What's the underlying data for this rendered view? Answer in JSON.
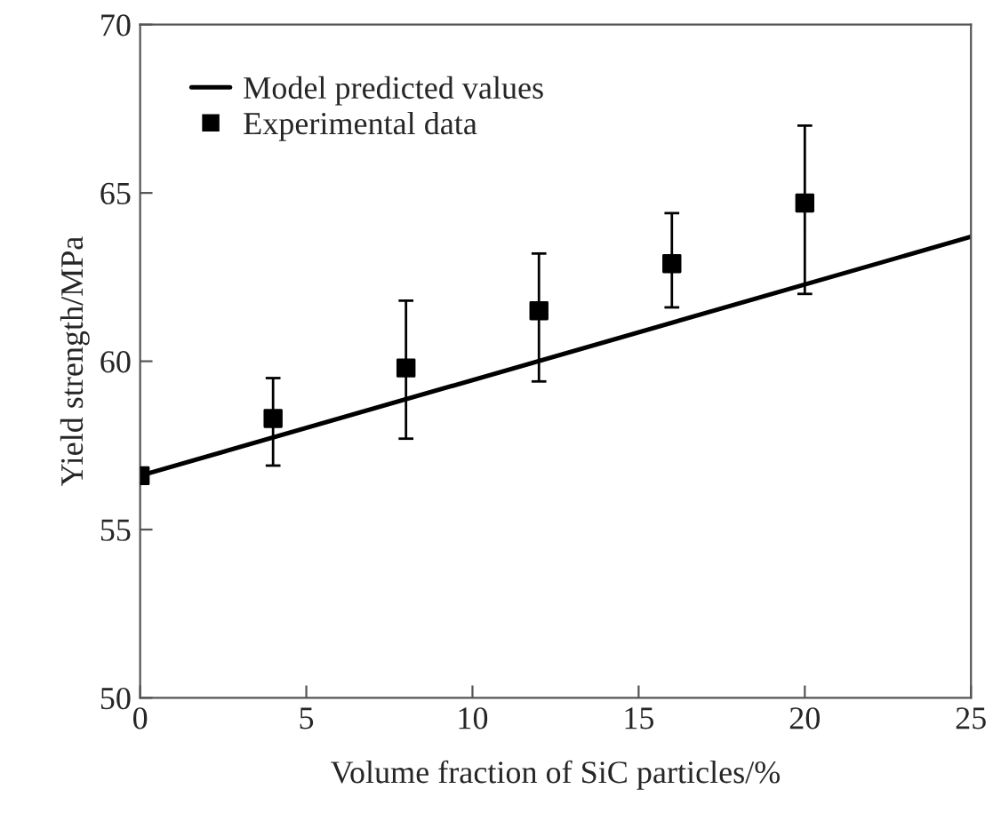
{
  "chart_data": {
    "type": "scatter",
    "xlabel": "Volume fraction of SiC particles/%",
    "ylabel": "Yield strength/MPa",
    "xlim": [
      0,
      25
    ],
    "xticks": [
      0,
      5,
      10,
      15,
      20,
      25
    ],
    "ylim": [
      50,
      70
    ],
    "yticks": [
      50,
      55,
      60,
      65,
      70
    ],
    "legend": "top left",
    "grid": false,
    "series": [
      {
        "name": "Model predicted values",
        "type": "line",
        "color": "#000000",
        "x": [
          0,
          25
        ],
        "values": [
          56.6,
          63.7
        ],
        "line_style": "solid",
        "marker": "none"
      },
      {
        "name": "Experimental data",
        "color": "#000000",
        "marker": "square",
        "x": [
          0,
          4,
          8,
          12,
          16,
          20
        ],
        "values": [
          56.6,
          58.3,
          59.8,
          61.5,
          62.9,
          64.7
        ],
        "errors": [
          null,
          [
            56.9,
            59.5
          ],
          [
            57.7,
            61.8
          ],
          [
            59.4,
            63.2
          ],
          [
            61.6,
            64.4
          ],
          [
            62.0,
            67.0
          ]
        ]
      }
    ]
  }
}
